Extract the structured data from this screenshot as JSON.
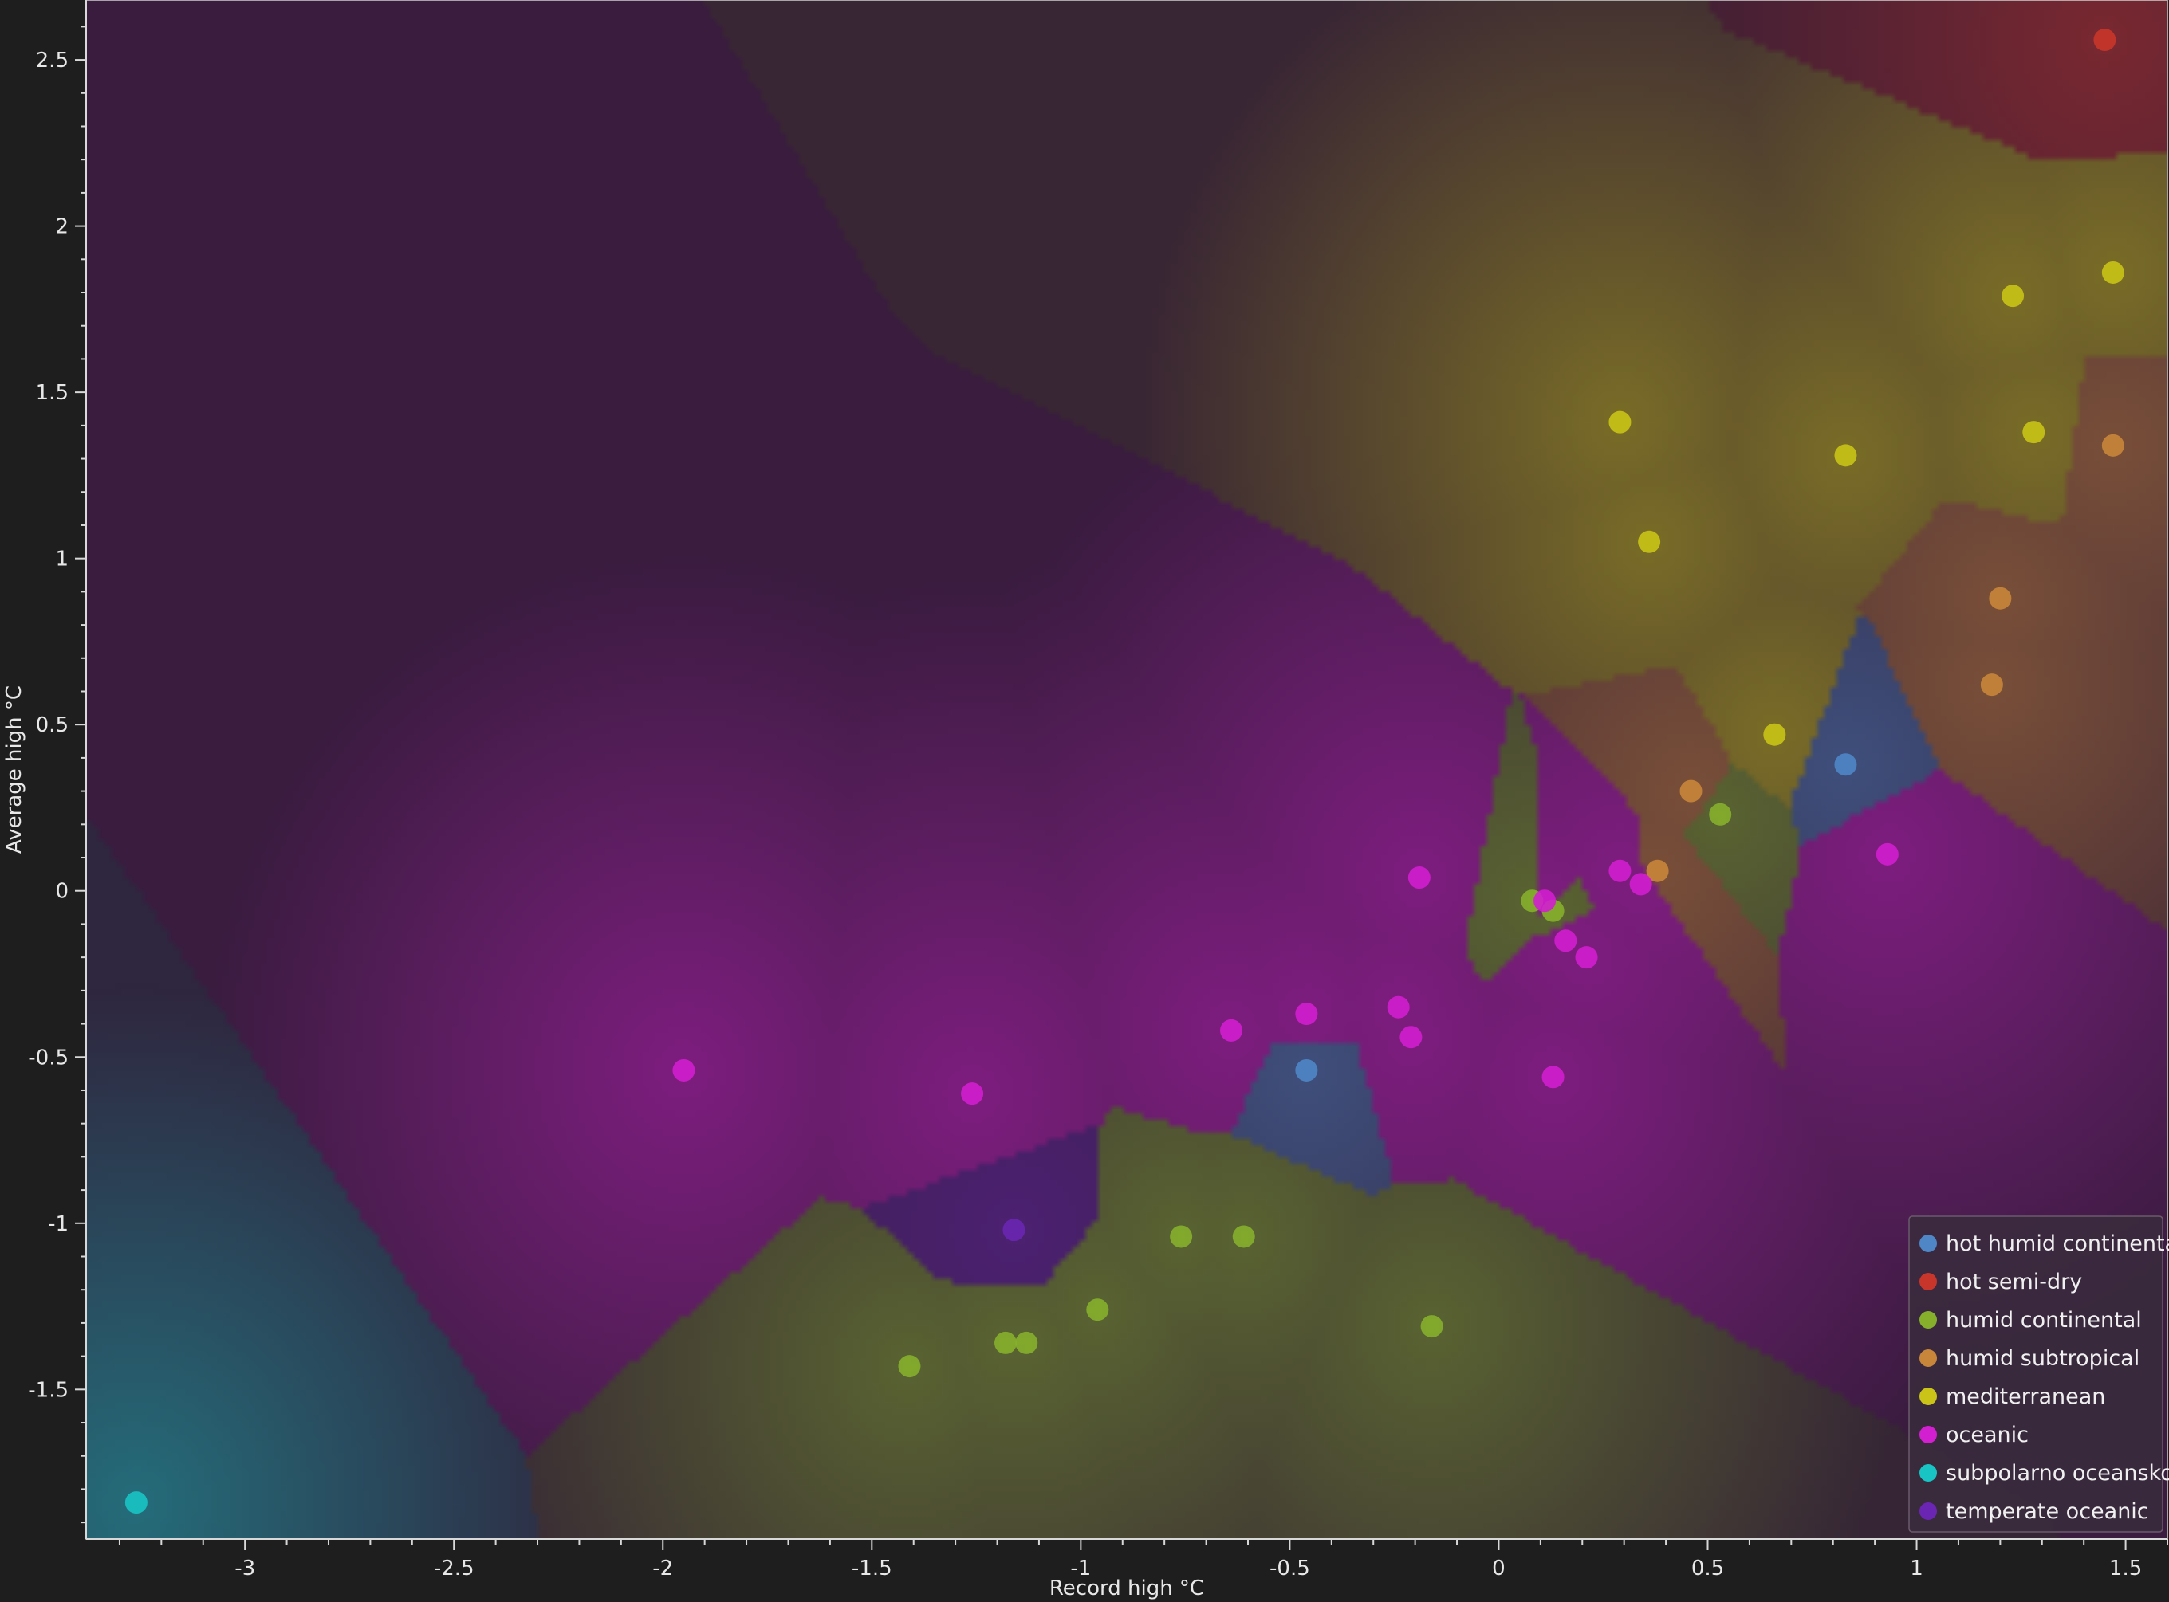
{
  "chart_data": {
    "type": "scatter",
    "title": "",
    "xlabel": "Record high °C",
    "ylabel": "Average high °C",
    "xlim": [
      -3.38,
      1.6
    ],
    "ylim": [
      -1.95,
      2.68
    ],
    "x_ticks": [
      -3,
      -2.5,
      -2,
      -1.5,
      -1,
      -0.5,
      0,
      0.5,
      1,
      1.5
    ],
    "y_ticks": [
      -1.5,
      -1,
      -0.5,
      0,
      0.5,
      1,
      1.5,
      2,
      2.5
    ],
    "grid": false,
    "background": "decision-region shading by nearest class",
    "legend_position": "bottom-right",
    "series": [
      {
        "name": "hot humid continental",
        "color": "#4e86c6",
        "points": [
          [
            -0.46,
            -0.54
          ],
          [
            0.83,
            0.38
          ]
        ]
      },
      {
        "name": "hot semi-dry",
        "color": "#c8352a",
        "points": [
          [
            1.45,
            2.56
          ]
        ]
      },
      {
        "name": "humid continental",
        "color": "#86b02c",
        "points": [
          [
            -1.41,
            -1.43
          ],
          [
            -1.18,
            -1.36
          ],
          [
            -1.13,
            -1.36
          ],
          [
            -0.96,
            -1.26
          ],
          [
            -0.76,
            -1.04
          ],
          [
            -0.61,
            -1.04
          ],
          [
            -0.16,
            -1.31
          ],
          [
            0.08,
            -0.03
          ],
          [
            0.13,
            -0.06
          ],
          [
            0.53,
            0.23
          ]
        ]
      },
      {
        "name": "humid subtropical",
        "color": "#c8863a",
        "points": [
          [
            0.38,
            0.06
          ],
          [
            0.46,
            0.3
          ],
          [
            1.18,
            0.62
          ],
          [
            1.2,
            0.88
          ],
          [
            1.47,
            1.34
          ]
        ]
      },
      {
        "name": "mediterranean",
        "color": "#c9c417",
        "points": [
          [
            0.29,
            1.41
          ],
          [
            0.36,
            1.05
          ],
          [
            0.66,
            0.47
          ],
          [
            0.83,
            1.31
          ],
          [
            1.23,
            1.79
          ],
          [
            1.28,
            1.38
          ],
          [
            1.47,
            1.86
          ]
        ]
      },
      {
        "name": "oceanic",
        "color": "#d21fcf",
        "points": [
          [
            -1.95,
            -0.54
          ],
          [
            -1.26,
            -0.61
          ],
          [
            -0.64,
            -0.42
          ],
          [
            -0.46,
            -0.37
          ],
          [
            -0.24,
            -0.35
          ],
          [
            -0.21,
            -0.44
          ],
          [
            -0.19,
            0.04
          ],
          [
            0.11,
            -0.03
          ],
          [
            0.13,
            -0.56
          ],
          [
            0.16,
            -0.15
          ],
          [
            0.21,
            -0.2
          ],
          [
            0.29,
            0.06
          ],
          [
            0.34,
            0.02
          ],
          [
            0.93,
            0.11
          ]
        ]
      },
      {
        "name": "subpolarno oceansko",
        "color": "#18c4c4",
        "points": [
          [
            -3.26,
            -1.84
          ]
        ]
      },
      {
        "name": "temperate oceanic",
        "color": "#6a26b2",
        "points": [
          [
            -1.16,
            -1.02
          ]
        ]
      }
    ]
  }
}
